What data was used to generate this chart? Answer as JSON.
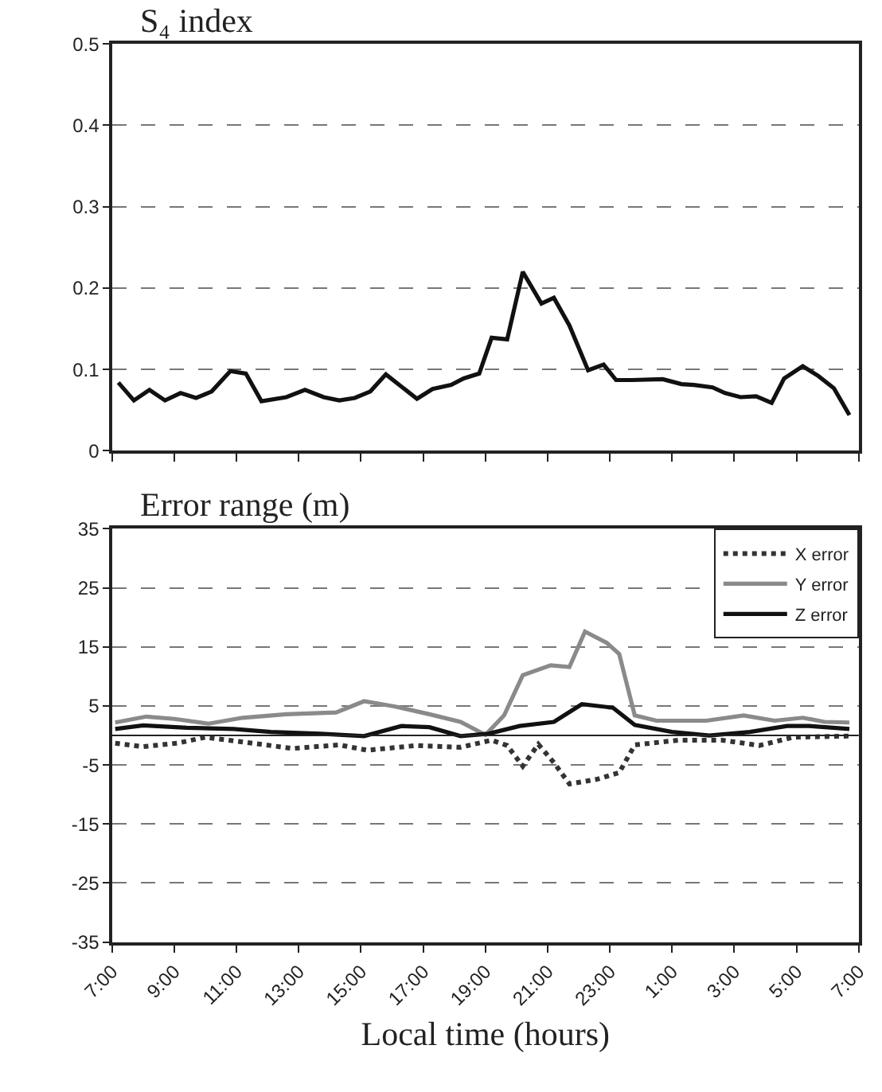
{
  "chart_data": [
    {
      "type": "line",
      "title": "S₄ index",
      "tick_labels": "y",
      "grid": "y",
      "xlim": [
        "2000-01-01T07:00",
        "2000-01-02T07:00"
      ],
      "ylim": [
        0,
        0.5
      ],
      "xticks": [
        {
          "value": "2000-01-01T07:00",
          "label": null
        },
        {
          "value": "2000-01-01T09:00",
          "label": null
        },
        {
          "value": "2000-01-01T11:00",
          "label": null
        },
        {
          "value": "2000-01-01T13:00",
          "label": null
        },
        {
          "value": "2000-01-01T15:00",
          "label": null
        },
        {
          "value": "2000-01-01T17:00",
          "label": null
        },
        {
          "value": "2000-01-01T19:00",
          "label": null
        },
        {
          "value": "2000-01-01T21:00",
          "label": null
        },
        {
          "value": "2000-01-01T23:00",
          "label": null
        },
        {
          "value": "2000-01-02T01:00",
          "label": null
        },
        {
          "value": "2000-01-02T03:00",
          "label": null
        },
        {
          "value": "2000-01-02T05:00",
          "label": null
        },
        {
          "value": "2000-01-02T07:00",
          "label": null
        }
      ],
      "yticks": [
        0,
        0.1,
        0.2,
        0.3,
        0.4,
        0.5
      ],
      "series": [
        {
          "color": "#111111",
          "x": [
            "2000-01-01T07:12",
            "2000-01-01T07:42",
            "2000-01-01T08:12",
            "2000-01-01T08:42",
            "2000-01-01T09:12",
            "2000-01-01T09:42",
            "2000-01-01T10:12",
            "2000-01-01T10:48",
            "2000-01-01T11:18",
            "2000-01-01T11:48",
            "2000-01-01T12:36",
            "2000-01-01T13:12",
            "2000-01-01T13:48",
            "2000-01-01T14:18",
            "2000-01-01T14:48",
            "2000-01-01T15:18",
            "2000-01-01T15:48",
            "2000-01-01T16:18",
            "2000-01-01T16:48",
            "2000-01-01T17:18",
            "2000-01-01T17:54",
            "2000-01-01T18:18",
            "2000-01-01T18:48",
            "2000-01-01T19:12",
            "2000-01-01T19:42",
            "2000-01-01T20:12",
            "2000-01-01T20:48",
            "2000-01-01T21:12",
            "2000-01-01T21:42",
            "2000-01-01T22:18",
            "2000-01-01T22:48",
            "2000-01-01T23:12",
            "2000-01-01T23:42",
            "2000-01-02T00:42",
            "2000-01-02T01:18",
            "2000-01-02T01:42",
            "2000-01-02T02:18",
            "2000-01-02T02:42",
            "2000-01-02T03:12",
            "2000-01-02T03:42",
            "2000-01-02T04:12",
            "2000-01-02T04:36",
            "2000-01-02T05:12",
            "2000-01-02T05:42",
            "2000-01-02T06:12",
            "2000-01-02T06:42"
          ],
          "values": [
            0.084,
            0.062,
            0.075,
            0.062,
            0.071,
            0.065,
            0.073,
            0.098,
            0.095,
            0.061,
            0.066,
            0.075,
            0.066,
            0.062,
            0.065,
            0.073,
            0.094,
            0.079,
            0.064,
            0.076,
            0.081,
            0.089,
            0.095,
            0.139,
            0.137,
            0.22,
            0.181,
            0.188,
            0.154,
            0.099,
            0.106,
            0.087,
            0.087,
            0.088,
            0.082,
            0.081,
            0.078,
            0.071,
            0.066,
            0.067,
            0.059,
            0.089,
            0.104,
            0.092,
            0.077,
            0.044
          ]
        }
      ]
    },
    {
      "type": "line",
      "title": "Error range (m)",
      "xlabel": "Local time (hours)",
      "grid": "y",
      "legend": "top right",
      "xlim": [
        "2000-01-01T07:00",
        "2000-01-02T07:00"
      ],
      "ylim": [
        -35,
        35
      ],
      "xticks": [
        {
          "value": "2000-01-01T07:00",
          "label": "7:00"
        },
        {
          "value": "2000-01-01T09:00",
          "label": "9:00"
        },
        {
          "value": "2000-01-01T11:00",
          "label": "11:00"
        },
        {
          "value": "2000-01-01T13:00",
          "label": "13:00"
        },
        {
          "value": "2000-01-01T15:00",
          "label": "15:00"
        },
        {
          "value": "2000-01-01T17:00",
          "label": "17:00"
        },
        {
          "value": "2000-01-01T19:00",
          "label": "19:00"
        },
        {
          "value": "2000-01-01T21:00",
          "label": "21:00"
        },
        {
          "value": "2000-01-01T23:00",
          "label": "23:00"
        },
        {
          "value": "2000-01-02T01:00",
          "label": "1:00"
        },
        {
          "value": "2000-01-02T03:00",
          "label": "3:00"
        },
        {
          "value": "2000-01-02T05:00",
          "label": "5:00"
        },
        {
          "value": "2000-01-02T07:00",
          "label": "7:00"
        }
      ],
      "yticks": [
        -35,
        -25,
        -15,
        -5,
        5,
        15,
        25,
        35
      ],
      "ref_lines": [
        {
          "axis": "y",
          "value": 0,
          "label": null,
          "color": "#222222"
        }
      ],
      "series": [
        {
          "name": "X error",
          "color": "#333333",
          "line_style": "dotted",
          "x": [
            "2000-01-01T07:06",
            "2000-01-01T08:00",
            "2000-01-01T09:06",
            "2000-01-01T10:00",
            "2000-01-01T11:12",
            "2000-01-01T12:48",
            "2000-01-01T14:18",
            "2000-01-01T15:12",
            "2000-01-01T16:48",
            "2000-01-01T18:12",
            "2000-01-01T19:12",
            "2000-01-01T19:42",
            "2000-01-01T20:12",
            "2000-01-01T20:42",
            "2000-01-01T21:12",
            "2000-01-01T21:42",
            "2000-01-01T22:36",
            "2000-01-01T23:18",
            "2000-01-01T23:48",
            "2000-01-02T01:12",
            "2000-01-02T02:36",
            "2000-01-02T03:18",
            "2000-01-02T03:48",
            "2000-01-02T04:54",
            "2000-01-02T06:42"
          ],
          "values": [
            -1.3,
            -1.9,
            -1.3,
            -0.3,
            -1.1,
            -2.2,
            -1.6,
            -2.5,
            -1.7,
            -2.0,
            -0.8,
            -1.7,
            -5.2,
            -1.5,
            -4.6,
            -8.2,
            -7.4,
            -6.3,
            -1.6,
            -0.8,
            -0.8,
            -1.3,
            -1.7,
            -0.3,
            -0.1
          ]
        },
        {
          "name": "Y error",
          "color": "#8a8a8a",
          "line_style": "solid",
          "x": [
            "2000-01-01T07:06",
            "2000-01-01T08:06",
            "2000-01-01T09:00",
            "2000-01-01T10:06",
            "2000-01-01T11:12",
            "2000-01-01T12:36",
            "2000-01-01T14:12",
            "2000-01-01T15:06",
            "2000-01-01T16:06",
            "2000-01-01T17:12",
            "2000-01-01T18:12",
            "2000-01-01T19:00",
            "2000-01-01T19:36",
            "2000-01-01T20:12",
            "2000-01-01T21:06",
            "2000-01-01T21:42",
            "2000-01-01T22:12",
            "2000-01-01T22:54",
            "2000-01-01T23:18",
            "2000-01-01T23:48",
            "2000-01-02T00:30",
            "2000-01-02T02:06",
            "2000-01-02T03:18",
            "2000-01-02T04:18",
            "2000-01-02T05:12",
            "2000-01-02T05:54",
            "2000-01-02T06:42"
          ],
          "values": [
            2.2,
            3.2,
            2.8,
            2.0,
            3.0,
            3.6,
            3.9,
            5.8,
            4.9,
            3.6,
            2.3,
            0.1,
            3.4,
            10.2,
            11.9,
            11.6,
            17.6,
            15.7,
            13.8,
            3.4,
            2.5,
            2.5,
            3.4,
            2.5,
            3.0,
            2.3,
            2.2
          ]
        },
        {
          "name": "Z error",
          "color": "#111111",
          "line_style": "solid",
          "x": [
            "2000-01-01T07:06",
            "2000-01-01T08:00",
            "2000-01-01T09:24",
            "2000-01-01T10:54",
            "2000-01-01T12:06",
            "2000-01-01T13:42",
            "2000-01-01T15:06",
            "2000-01-01T16:18",
            "2000-01-01T17:12",
            "2000-01-01T18:12",
            "2000-01-01T19:06",
            "2000-01-01T20:06",
            "2000-01-01T21:12",
            "2000-01-01T22:06",
            "2000-01-01T23:06",
            "2000-01-01T23:48",
            "2000-01-02T01:00",
            "2000-01-02T02:12",
            "2000-01-02T03:30",
            "2000-01-02T04:42",
            "2000-01-02T05:24",
            "2000-01-02T06:42"
          ],
          "values": [
            1.1,
            1.7,
            1.3,
            1.1,
            0.6,
            0.3,
            -0.1,
            1.6,
            1.4,
            -0.1,
            0.3,
            1.6,
            2.3,
            5.3,
            4.7,
            1.8,
            0.6,
            0.0,
            0.6,
            1.6,
            1.6,
            1.1
          ]
        }
      ]
    }
  ]
}
